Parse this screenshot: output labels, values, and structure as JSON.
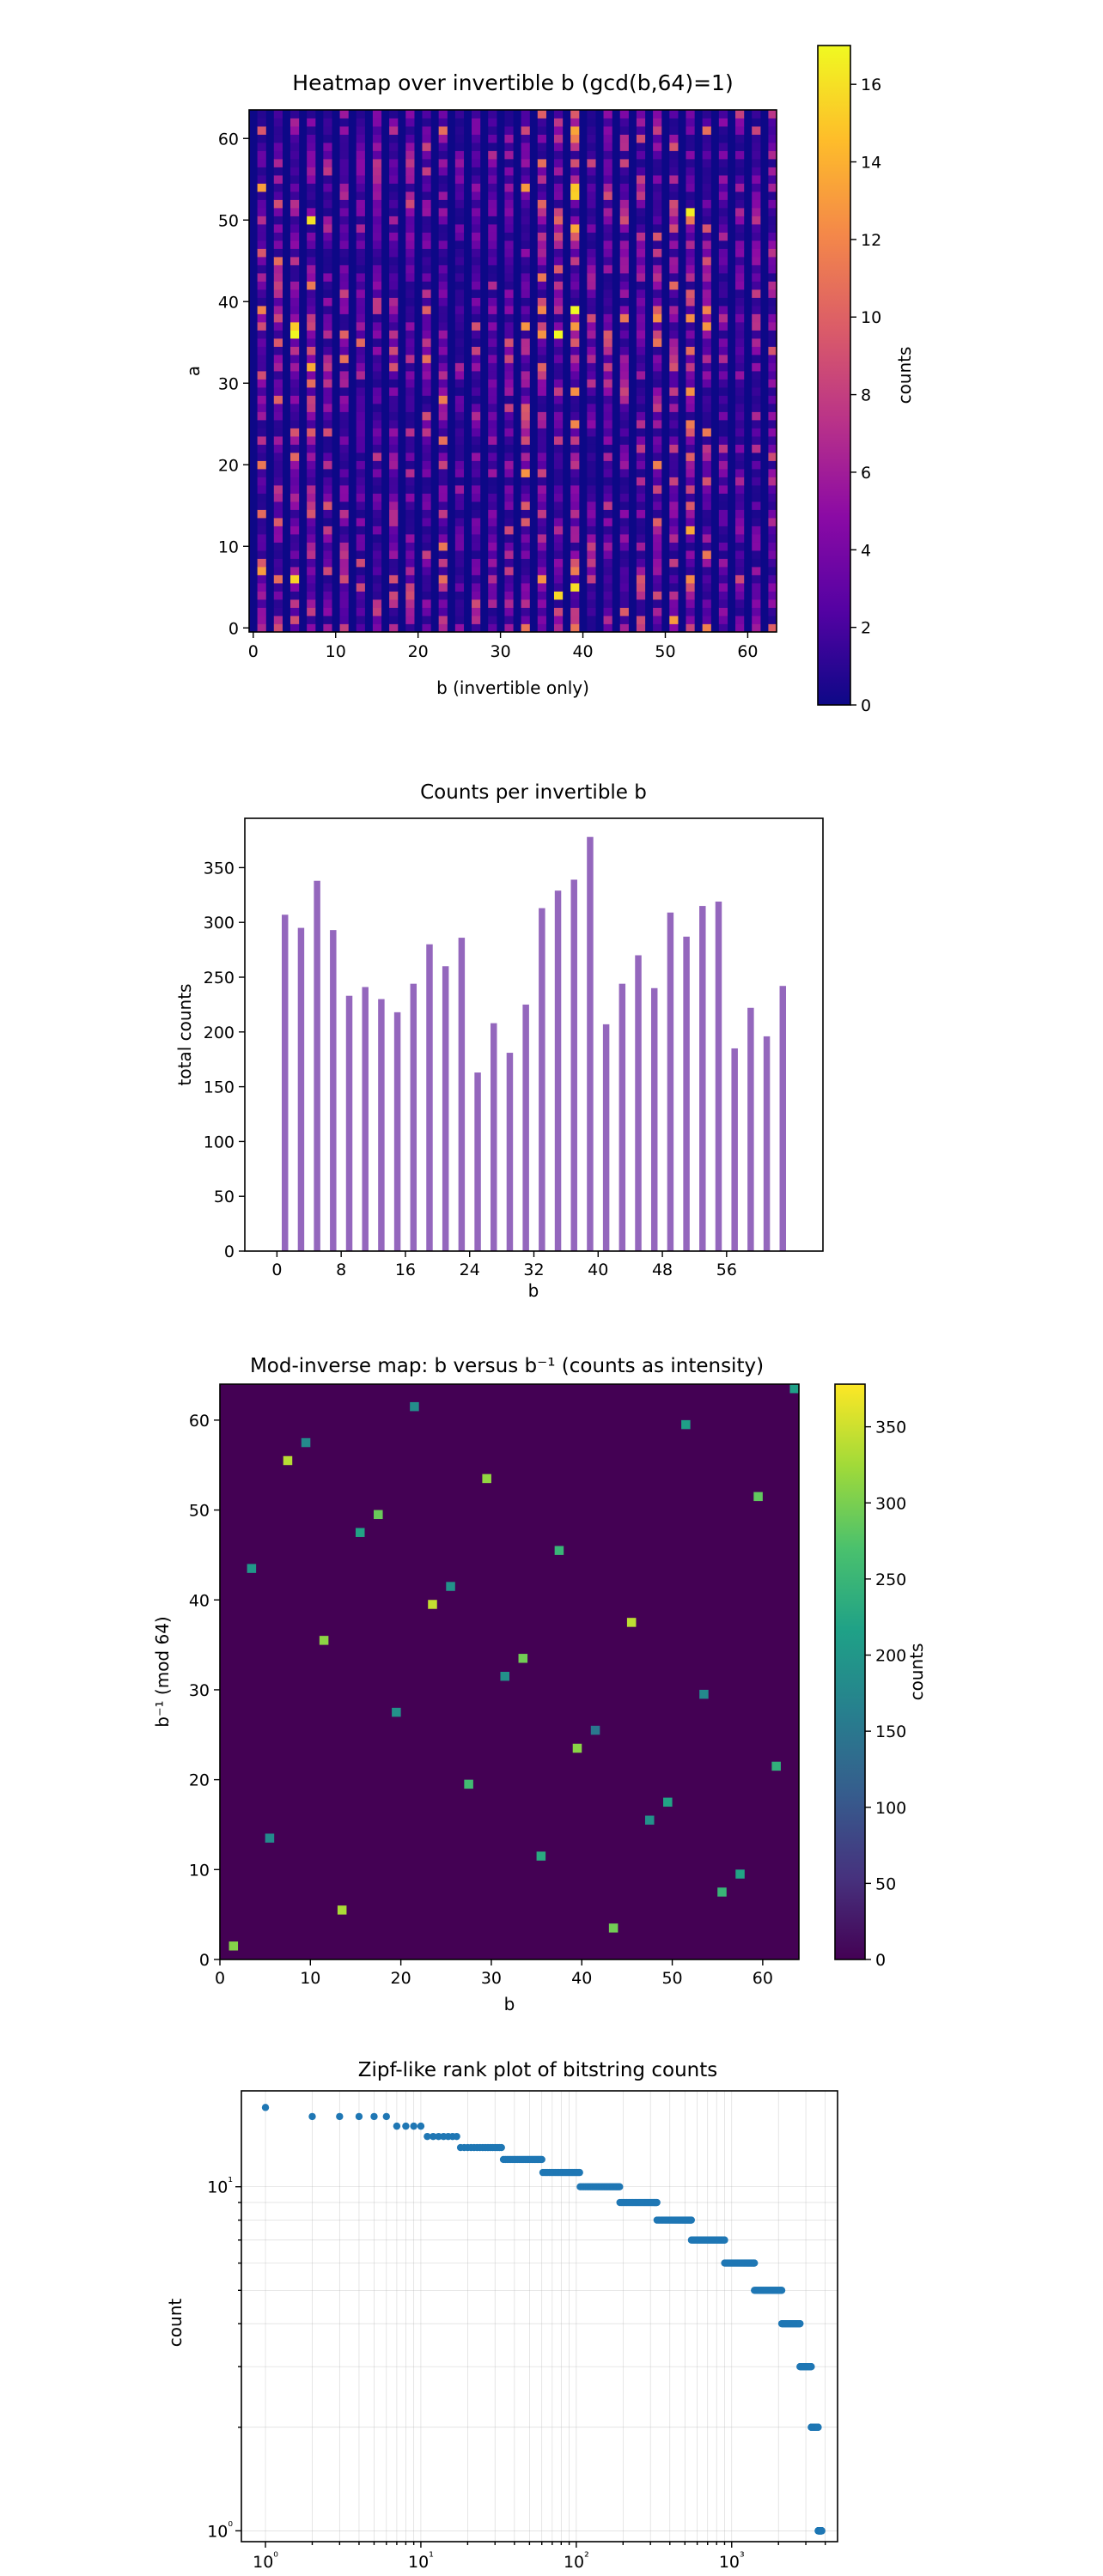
{
  "chart_data": [
    {
      "type": "heatmap",
      "title": "Heatmap over invertible b (gcd(b,64)=1)",
      "xlabel": "b  (invertible only)",
      "ylabel": "a",
      "xlim": [
        0,
        64
      ],
      "ylim": [
        0,
        64
      ],
      "x_ticks": [
        0,
        10,
        20,
        30,
        40,
        50,
        60
      ],
      "y_ticks": [
        0,
        10,
        20,
        30,
        40,
        50,
        60
      ],
      "colorbar": {
        "label": "counts",
        "min": 0,
        "max": 17,
        "ticks": [
          0,
          2,
          4,
          6,
          8,
          10,
          12,
          14,
          16
        ]
      },
      "colormap": [
        "#0d0887",
        "#5402a3",
        "#8b0aa5",
        "#b93289",
        "#db5c68",
        "#f48849",
        "#febd2a",
        "#f0f921"
      ],
      "columns_b": [
        1,
        3,
        5,
        7,
        9,
        11,
        13,
        15,
        17,
        19,
        21,
        23,
        25,
        27,
        29,
        31,
        33,
        35,
        37,
        39,
        41,
        43,
        45,
        47,
        49,
        51,
        53,
        55,
        57,
        59,
        61,
        63
      ],
      "column_totals": [
        307,
        295,
        338,
        293,
        233,
        241,
        230,
        218,
        244,
        280,
        260,
        286,
        163,
        208,
        181,
        225,
        313,
        329,
        339,
        378,
        207,
        244,
        270,
        240,
        309,
        287,
        315,
        319,
        185,
        222,
        196,
        242
      ],
      "grid": false
    },
    {
      "type": "bar",
      "title": "Counts per invertible b",
      "xlabel": "b",
      "ylabel": "total counts",
      "xlim": [
        -4,
        68
      ],
      "ylim": [
        0,
        395
      ],
      "x_ticks": [
        0,
        8,
        16,
        24,
        32,
        40,
        48,
        56
      ],
      "y_ticks": [
        0,
        50,
        100,
        150,
        200,
        250,
        300,
        350
      ],
      "color": "#9467bd",
      "categories": [
        1,
        3,
        5,
        7,
        9,
        11,
        13,
        15,
        17,
        19,
        21,
        23,
        25,
        27,
        29,
        31,
        33,
        35,
        37,
        39,
        41,
        43,
        45,
        47,
        49,
        51,
        53,
        55,
        57,
        59,
        61,
        63
      ],
      "values": [
        307,
        295,
        338,
        293,
        233,
        241,
        230,
        218,
        244,
        280,
        260,
        286,
        163,
        208,
        181,
        225,
        313,
        329,
        339,
        378,
        207,
        244,
        270,
        240,
        309,
        287,
        315,
        319,
        185,
        222,
        196,
        242
      ],
      "grid": false
    },
    {
      "type": "heatmap",
      "title": "Mod-inverse map:  b  versus  b⁻¹  (counts as intensity)",
      "xlabel": "b",
      "ylabel": "b⁻¹   (mod 64)",
      "xlim": [
        0,
        64
      ],
      "ylim": [
        0,
        64
      ],
      "x_ticks": [
        0,
        10,
        20,
        30,
        40,
        50,
        60
      ],
      "y_ticks": [
        0,
        10,
        20,
        30,
        40,
        50,
        60
      ],
      "colorbar": {
        "label": "counts",
        "min": 0,
        "max": 378,
        "ticks": [
          0,
          50,
          100,
          150,
          200,
          250,
          300,
          350
        ]
      },
      "colormap": [
        "#440154",
        "#46327e",
        "#365c8d",
        "#277f8e",
        "#1fa187",
        "#4ac16d",
        "#a0da39",
        "#fde725"
      ],
      "background": "#440154",
      "points": [
        {
          "b": 1,
          "inv": 1,
          "count": 307
        },
        {
          "b": 3,
          "inv": 43,
          "count": 200
        },
        {
          "b": 5,
          "inv": 13,
          "count": 180
        },
        {
          "b": 7,
          "inv": 55,
          "count": 338
        },
        {
          "b": 9,
          "inv": 57,
          "count": 180
        },
        {
          "b": 11,
          "inv": 35,
          "count": 312
        },
        {
          "b": 13,
          "inv": 5,
          "count": 330
        },
        {
          "b": 15,
          "inv": 47,
          "count": 220
        },
        {
          "b": 17,
          "inv": 49,
          "count": 290
        },
        {
          "b": 19,
          "inv": 27,
          "count": 190
        },
        {
          "b": 21,
          "inv": 61,
          "count": 185
        },
        {
          "b": 23,
          "inv": 39,
          "count": 345
        },
        {
          "b": 25,
          "inv": 41,
          "count": 190
        },
        {
          "b": 27,
          "inv": 19,
          "count": 260
        },
        {
          "b": 29,
          "inv": 53,
          "count": 315
        },
        {
          "b": 31,
          "inv": 31,
          "count": 190
        },
        {
          "b": 33,
          "inv": 33,
          "count": 295
        },
        {
          "b": 35,
          "inv": 11,
          "count": 230
        },
        {
          "b": 37,
          "inv": 45,
          "count": 250
        },
        {
          "b": 39,
          "inv": 23,
          "count": 310
        },
        {
          "b": 41,
          "inv": 25,
          "count": 150
        },
        {
          "b": 43,
          "inv": 3,
          "count": 295
        },
        {
          "b": 45,
          "inv": 37,
          "count": 340
        },
        {
          "b": 47,
          "inv": 15,
          "count": 190
        },
        {
          "b": 49,
          "inv": 17,
          "count": 220
        },
        {
          "b": 51,
          "inv": 59,
          "count": 215
        },
        {
          "b": 53,
          "inv": 29,
          "count": 180
        },
        {
          "b": 55,
          "inv": 7,
          "count": 250
        },
        {
          "b": 57,
          "inv": 9,
          "count": 220
        },
        {
          "b": 59,
          "inv": 51,
          "count": 285
        },
        {
          "b": 61,
          "inv": 21,
          "count": 240
        },
        {
          "b": 63,
          "inv": 63,
          "count": 215
        }
      ],
      "grid": false
    },
    {
      "type": "scatter",
      "title": "Zipf-like rank plot of bitstring counts",
      "xlabel": "rank",
      "ylabel": "count",
      "x_scale": "log",
      "y_scale": "log",
      "xlim": [
        0.7,
        4800
      ],
      "ylim": [
        0.93,
        19
      ],
      "x_ticks": [
        "10⁰",
        "10¹",
        "10²",
        "10³"
      ],
      "y_ticks": [
        "10⁰",
        "10¹"
      ],
      "color": "#1f77b4",
      "grid": true,
      "points_runs": [
        {
          "count": 17,
          "rank_from": 1,
          "rank_to": 1
        },
        {
          "count": 16,
          "rank_from": 2,
          "rank_to": 6
        },
        {
          "count": 15,
          "rank_from": 7,
          "rank_to": 10
        },
        {
          "count": 14,
          "rank_from": 11,
          "rank_to": 17
        },
        {
          "count": 13,
          "rank_from": 18,
          "rank_to": 33
        },
        {
          "count": 12,
          "rank_from": 34,
          "rank_to": 60
        },
        {
          "count": 11,
          "rank_from": 61,
          "rank_to": 105
        },
        {
          "count": 10,
          "rank_from": 106,
          "rank_to": 190
        },
        {
          "count": 9,
          "rank_from": 191,
          "rank_to": 330
        },
        {
          "count": 8,
          "rank_from": 331,
          "rank_to": 550
        },
        {
          "count": 7,
          "rank_from": 551,
          "rank_to": 900
        },
        {
          "count": 6,
          "rank_from": 901,
          "rank_to": 1400
        },
        {
          "count": 5,
          "rank_from": 1401,
          "rank_to": 2100
        },
        {
          "count": 4,
          "rank_from": 2101,
          "rank_to": 2750
        },
        {
          "count": 3,
          "rank_from": 2751,
          "rank_to": 3250
        },
        {
          "count": 2,
          "rank_from": 3251,
          "rank_to": 3600
        },
        {
          "count": 1,
          "rank_from": 3601,
          "rank_to": 3800
        }
      ]
    }
  ]
}
